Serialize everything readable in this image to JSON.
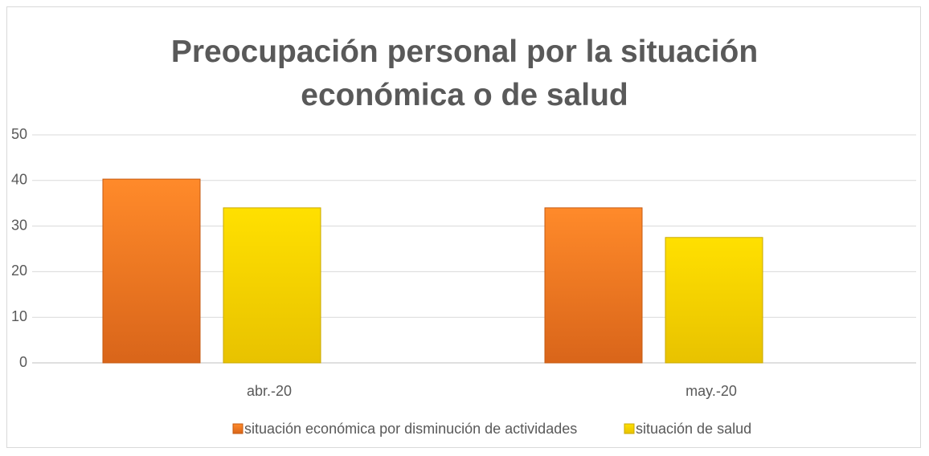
{
  "chart_data": {
    "type": "bar",
    "title": "Preocupación personal por la situación económica o de salud",
    "categories": [
      "abr.-20",
      "may.-20"
    ],
    "series": [
      {
        "name": "situación económica por disminución de actividades",
        "color": "#f47a20",
        "values": [
          40.3,
          34
        ]
      },
      {
        "name": "situación de salud",
        "color": "#f5d000",
        "values": [
          34,
          27.5
        ]
      }
    ],
    "ylim": [
      0,
      50
    ],
    "yticks": [
      0,
      10,
      20,
      30,
      40,
      50
    ],
    "grid": true,
    "legend": "bottom"
  }
}
